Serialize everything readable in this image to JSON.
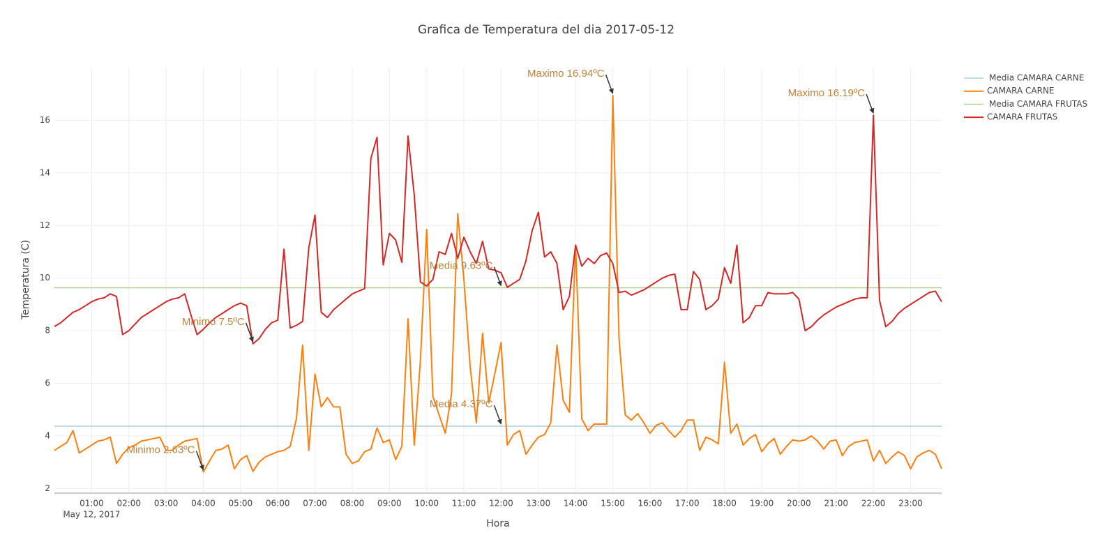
{
  "chart_data": {
    "type": "line",
    "title": "Grafica de Temperatura del dia 2017-05-12",
    "x_label": "Hora",
    "y_label": "Temperatura (C)",
    "x_date_label": "May 12, 2017",
    "x": [
      "00:00",
      "00:10",
      "00:20",
      "00:30",
      "00:40",
      "00:50",
      "01:00",
      "01:10",
      "01:20",
      "01:30",
      "01:40",
      "01:50",
      "02:00",
      "02:10",
      "02:20",
      "02:30",
      "02:40",
      "02:50",
      "03:00",
      "03:10",
      "03:20",
      "03:30",
      "03:40",
      "03:50",
      "04:00",
      "04:10",
      "04:20",
      "04:30",
      "04:40",
      "04:50",
      "05:00",
      "05:10",
      "05:20",
      "05:30",
      "05:40",
      "05:50",
      "06:00",
      "06:10",
      "06:20",
      "06:30",
      "06:40",
      "06:50",
      "07:00",
      "07:10",
      "07:20",
      "07:30",
      "07:40",
      "07:50",
      "08:00",
      "08:10",
      "08:20",
      "08:30",
      "08:40",
      "08:50",
      "09:00",
      "09:10",
      "09:20",
      "09:30",
      "09:40",
      "09:50",
      "10:00",
      "10:10",
      "10:20",
      "10:30",
      "10:40",
      "10:50",
      "11:00",
      "11:10",
      "11:20",
      "11:30",
      "11:40",
      "11:50",
      "12:00",
      "12:10",
      "12:20",
      "12:30",
      "12:40",
      "12:50",
      "13:00",
      "13:10",
      "13:20",
      "13:30",
      "13:40",
      "13:50",
      "14:00",
      "14:10",
      "14:20",
      "14:30",
      "14:40",
      "14:50",
      "15:00",
      "15:10",
      "15:20",
      "15:30",
      "15:40",
      "15:50",
      "16:00",
      "16:10",
      "16:20",
      "16:30",
      "16:40",
      "16:50",
      "17:00",
      "17:10",
      "17:20",
      "17:30",
      "17:40",
      "17:50",
      "18:00",
      "18:10",
      "18:20",
      "18:30",
      "18:40",
      "18:50",
      "19:00",
      "19:10",
      "19:20",
      "19:30",
      "19:40",
      "19:50",
      "20:00",
      "20:10",
      "20:20",
      "20:30",
      "20:40",
      "20:50",
      "21:00",
      "21:10",
      "21:20",
      "21:30",
      "21:40",
      "21:50",
      "22:00",
      "22:10",
      "22:20",
      "22:30",
      "22:40",
      "22:50",
      "23:00",
      "23:10",
      "23:20",
      "23:30",
      "23:40",
      "23:50"
    ],
    "xlim": [
      "00:00",
      "23:50"
    ],
    "xticks": [
      "01:00",
      "02:00",
      "03:00",
      "04:00",
      "05:00",
      "06:00",
      "07:00",
      "08:00",
      "09:00",
      "10:00",
      "11:00",
      "12:00",
      "13:00",
      "14:00",
      "15:00",
      "16:00",
      "17:00",
      "18:00",
      "19:00",
      "20:00",
      "21:00",
      "22:00",
      "23:00"
    ],
    "ylim": [
      1.85,
      18.0
    ],
    "yticks": [
      2,
      4,
      6,
      8,
      10,
      12,
      14,
      16
    ],
    "grid": true,
    "legend_position": "top-right",
    "series": [
      {
        "name": "Media CAMARA CARNE",
        "color": "#9ec5dc",
        "value": 4.37
      },
      {
        "name": "CAMARA CARNE",
        "color": "#ff7f0e",
        "values": [
          3.45,
          3.6,
          3.75,
          4.2,
          3.35,
          3.5,
          3.65,
          3.8,
          3.85,
          3.95,
          2.95,
          3.3,
          3.55,
          3.65,
          3.8,
          3.85,
          3.9,
          3.95,
          3.45,
          3.45,
          3.65,
          3.8,
          3.85,
          3.9,
          2.63,
          3.05,
          3.45,
          3.5,
          3.65,
          2.75,
          3.1,
          3.25,
          2.65,
          3.0,
          3.2,
          3.3,
          3.4,
          3.45,
          3.6,
          4.65,
          7.45,
          3.45,
          6.35,
          5.1,
          5.45,
          5.1,
          5.1,
          3.3,
          2.95,
          3.05,
          3.4,
          3.5,
          4.3,
          3.75,
          3.85,
          3.1,
          3.6,
          8.45,
          3.65,
          6.9,
          11.85,
          5.5,
          4.8,
          4.1,
          5.6,
          12.45,
          9.95,
          6.65,
          4.5,
          7.9,
          5.25,
          6.4,
          7.55,
          3.65,
          4.05,
          4.2,
          3.3,
          3.65,
          3.95,
          4.05,
          4.5,
          7.45,
          5.35,
          4.9,
          11.25,
          4.65,
          4.2,
          4.45,
          4.45,
          4.45,
          16.94,
          7.7,
          4.8,
          4.6,
          4.85,
          4.5,
          4.1,
          4.4,
          4.5,
          4.2,
          3.95,
          4.2,
          4.6,
          4.6,
          3.45,
          3.95,
          3.85,
          3.7,
          6.8,
          4.1,
          4.45,
          3.65,
          3.9,
          4.05,
          3.4,
          3.7,
          3.9,
          3.3,
          3.6,
          3.85,
          3.8,
          3.85,
          4.0,
          3.8,
          3.5,
          3.8,
          3.85,
          3.25,
          3.6,
          3.75,
          3.8,
          3.85,
          3.05,
          3.45,
          2.95,
          3.2,
          3.4,
          3.25,
          2.75,
          3.2,
          3.35,
          3.45,
          3.3,
          2.75
        ]
      },
      {
        "name": "Media CAMARA FRUTAS",
        "color": "#a9d08e",
        "value": 9.63
      },
      {
        "name": "CAMARA FRUTAS",
        "color": "#d62728",
        "values": [
          8.16,
          8.3,
          8.5,
          8.7,
          8.8,
          8.95,
          9.1,
          9.2,
          9.25,
          9.4,
          9.3,
          7.85,
          8.0,
          8.25,
          8.5,
          8.65,
          8.8,
          8.95,
          9.1,
          9.2,
          9.25,
          9.4,
          8.6,
          7.85,
          8.05,
          8.3,
          8.5,
          8.65,
          8.8,
          8.95,
          9.05,
          8.95,
          7.5,
          7.7,
          8.05,
          8.3,
          8.4,
          11.1,
          8.1,
          8.2,
          8.35,
          11.15,
          12.4,
          8.7,
          8.5,
          8.8,
          9.0,
          9.2,
          9.4,
          9.5,
          9.6,
          14.55,
          15.35,
          10.5,
          11.7,
          11.45,
          10.6,
          15.4,
          13.15,
          9.85,
          9.7,
          9.95,
          11.0,
          10.9,
          11.7,
          10.75,
          11.55,
          11.0,
          10.55,
          11.4,
          10.35,
          10.3,
          10.2,
          9.65,
          9.8,
          9.95,
          10.65,
          11.8,
          12.5,
          10.8,
          11.0,
          10.55,
          8.8,
          9.3,
          11.25,
          10.45,
          10.75,
          10.55,
          10.85,
          10.95,
          10.55,
          9.45,
          9.5,
          9.35,
          9.45,
          9.55,
          9.7,
          9.85,
          10.0,
          10.1,
          10.15,
          8.8,
          8.8,
          10.25,
          9.95,
          8.8,
          8.95,
          9.2,
          10.4,
          9.8,
          11.25,
          8.3,
          8.5,
          8.95,
          8.95,
          9.45,
          9.4,
          9.4,
          9.4,
          9.45,
          9.2,
          8.0,
          8.15,
          8.4,
          8.6,
          8.75,
          8.9,
          9.0,
          9.1,
          9.2,
          9.25,
          9.25,
          16.19,
          9.15,
          8.15,
          8.35,
          8.65,
          8.85,
          9.0,
          9.15,
          9.3,
          9.45,
          9.5,
          9.1
        ]
      }
    ],
    "annotations": [
      {
        "text": "Maximo 16.94ºC",
        "x": "15:00",
        "y": 16.94
      },
      {
        "text": "Maximo 16.19ºC",
        "x": "22:00",
        "y": 16.19
      },
      {
        "text": "Media 9.63ºC",
        "x": "12:00",
        "y": 9.63
      },
      {
        "text": "Media 4.37ºC",
        "x": "12:00",
        "y": 4.37
      },
      {
        "text": "Minimo 7.5ºC",
        "x": "05:20",
        "y": 7.5
      },
      {
        "text": "Minimo 2.63ºC",
        "x": "04:00",
        "y": 2.63
      }
    ]
  }
}
